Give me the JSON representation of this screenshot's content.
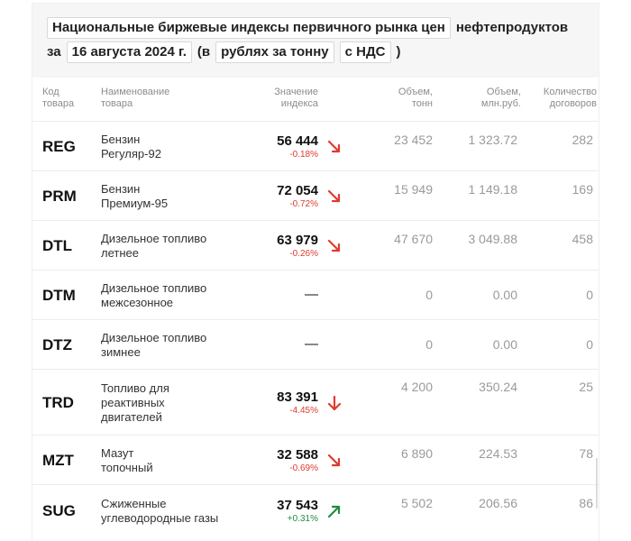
{
  "header": {
    "line1_title": "Национальные биржевые индексы первичного рынка цен",
    "line1_suffix": "нефтепродуктов",
    "line2_prefix": "за",
    "date": "16 августа 2024 г.",
    "open_paren": "(в",
    "units": "рублях за тонну",
    "vat": "с НДС",
    "close_paren": ")"
  },
  "columns": {
    "code": [
      "Код",
      "товара"
    ],
    "name": [
      "Наименование",
      "товара"
    ],
    "index": [
      "Значение",
      "индекса"
    ],
    "volume_t": [
      "Объем,",
      "тонн"
    ],
    "volume_rub": [
      "Объем,",
      "млн.руб."
    ],
    "contracts": [
      "Количество",
      "договоров"
    ]
  },
  "colors": {
    "down": "#e03a2f",
    "up": "#1e8e3e"
  },
  "rows": [
    {
      "code": "REG",
      "name": [
        "Бензин",
        "Регуляр-92"
      ],
      "value": "56 444",
      "change": "-0.18%",
      "dir": "down",
      "volume_t": "23 452",
      "volume_rub": "1 323.72",
      "contracts": "282"
    },
    {
      "code": "PRM",
      "name": [
        "Бензин",
        "Премиум-95"
      ],
      "value": "72 054",
      "change": "-0.72%",
      "dir": "down",
      "volume_t": "15 949",
      "volume_rub": "1 149.18",
      "contracts": "169"
    },
    {
      "code": "DTL",
      "name": [
        "Дизельное топливо",
        "летнее"
      ],
      "value": "63 979",
      "change": "-0.26%",
      "dir": "down",
      "volume_t": "47 670",
      "volume_rub": "3 049.88",
      "contracts": "458"
    },
    {
      "code": "DTM",
      "name": [
        "Дизельное топливо",
        "межсезонное"
      ],
      "value": "—",
      "change": "",
      "dir": "none",
      "volume_t": "0",
      "volume_rub": "0.00",
      "contracts": "0"
    },
    {
      "code": "DTZ",
      "name": [
        "Дизельное топливо",
        "зимнее"
      ],
      "value": "—",
      "change": "",
      "dir": "none",
      "volume_t": "0",
      "volume_rub": "0.00",
      "contracts": "0"
    },
    {
      "code": "TRD",
      "name": [
        "Топливо для",
        "реактивных",
        "двигателей"
      ],
      "value": "83 391",
      "change": "-4.45%",
      "dir": "down-strong",
      "volume_t": "4 200",
      "volume_rub": "350.24",
      "contracts": "25"
    },
    {
      "code": "MZT",
      "name": [
        "Мазут",
        "топочный"
      ],
      "value": "32 588",
      "change": "-0.69%",
      "dir": "down",
      "volume_t": "6 890",
      "volume_rub": "224.53",
      "contracts": "78"
    },
    {
      "code": "SUG",
      "name": [
        "Сжиженные",
        "углеводородные газы"
      ],
      "value": "37 543",
      "change": "+0.31%",
      "dir": "up",
      "volume_t": "5 502",
      "volume_rub": "206.56",
      "contracts": "86"
    }
  ]
}
